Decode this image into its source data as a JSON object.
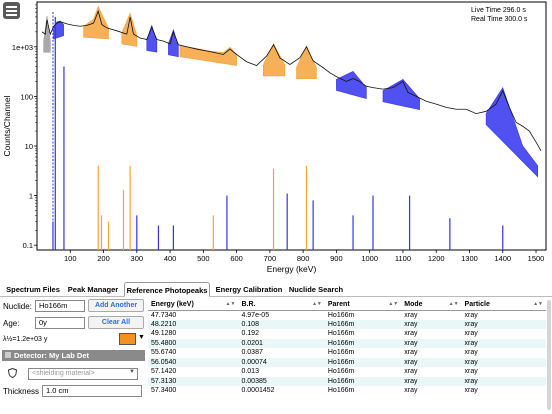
{
  "live_time": "Live Time 296.0 s",
  "real_time": "Real Time 300.0 s",
  "chart_data": {
    "type": "line",
    "title": "",
    "xlabel": "Energy (keV)",
    "ylabel": "Counts/Channel",
    "y_scale": "log",
    "xlim": [
      0,
      1530
    ],
    "ylim": [
      0.08,
      8000
    ],
    "x_ticks": [
      100,
      200,
      300,
      400,
      500,
      600,
      700,
      800,
      900,
      1000,
      1100,
      1200,
      1300,
      1400,
      1500
    ],
    "y_ticks": [
      {
        "v": 1000,
        "label": "1e+03"
      },
      {
        "v": 100,
        "label": "100"
      },
      {
        "v": 10,
        "label": "10"
      },
      {
        "v": 1,
        "label": "1"
      },
      {
        "v": 0.1,
        "label": "0.1"
      }
    ],
    "spectrum": [
      [
        15,
        2000
      ],
      [
        25,
        1800
      ],
      [
        30,
        3500
      ],
      [
        35,
        2500
      ],
      [
        40,
        1800
      ],
      [
        50,
        2600
      ],
      [
        60,
        3000
      ],
      [
        70,
        3200
      ],
      [
        90,
        2900
      ],
      [
        110,
        2700
      ],
      [
        130,
        2600
      ],
      [
        150,
        2700
      ],
      [
        170,
        3000
      ],
      [
        184,
        5200
      ],
      [
        195,
        2800
      ],
      [
        210,
        2400
      ],
      [
        240,
        2100
      ],
      [
        270,
        1800
      ],
      [
        280,
        4000
      ],
      [
        290,
        1800
      ],
      [
        310,
        1500
      ],
      [
        330,
        1400
      ],
      [
        345,
        2500
      ],
      [
        360,
        1400
      ],
      [
        380,
        1300
      ],
      [
        400,
        1150
      ],
      [
        410,
        2000
      ],
      [
        425,
        1100
      ],
      [
        450,
        1000
      ],
      [
        480,
        900
      ],
      [
        520,
        800
      ],
      [
        560,
        700
      ],
      [
        580,
        900
      ],
      [
        600,
        700
      ],
      [
        630,
        500
      ],
      [
        660,
        420
      ],
      [
        690,
        650
      ],
      [
        711,
        1100
      ],
      [
        730,
        600
      ],
      [
        760,
        440
      ],
      [
        790,
        600
      ],
      [
        810,
        1000
      ],
      [
        830,
        520
      ],
      [
        860,
        380
      ],
      [
        880,
        300
      ],
      [
        900,
        250
      ],
      [
        930,
        200
      ],
      [
        950,
        230
      ],
      [
        970,
        200
      ],
      [
        990,
        160
      ],
      [
        1010,
        150
      ],
      [
        1040,
        140
      ],
      [
        1070,
        150
      ],
      [
        1100,
        200
      ],
      [
        1115,
        120
      ],
      [
        1140,
        100
      ],
      [
        1170,
        80
      ],
      [
        1200,
        70
      ],
      [
        1230,
        60
      ],
      [
        1260,
        55
      ],
      [
        1290,
        55
      ],
      [
        1320,
        45
      ],
      [
        1350,
        50
      ],
      [
        1380,
        70
      ],
      [
        1400,
        130
      ],
      [
        1420,
        60
      ],
      [
        1440,
        30
      ],
      [
        1460,
        25
      ],
      [
        1480,
        20
      ],
      [
        1500,
        12
      ],
      [
        1515,
        8
      ]
    ],
    "fitted_peaks": [
      {
        "color": "#9a9a9a",
        "pts": [
          [
            20,
            1300
          ],
          [
            30,
            4200
          ],
          [
            40,
            1300
          ]
        ]
      },
      {
        "color": "#3333ee",
        "pts": [
          [
            50,
            2400
          ],
          [
            60,
            3200
          ],
          [
            70,
            3300
          ],
          [
            80,
            2800
          ]
        ]
      },
      {
        "color": "#f5a23a",
        "pts": [
          [
            140,
            2600
          ],
          [
            170,
            3600
          ],
          [
            184,
            6500
          ],
          [
            195,
            4500
          ],
          [
            215,
            2400
          ]
        ]
      },
      {
        "color": "#f5a23a",
        "pts": [
          [
            255,
            1900
          ],
          [
            280,
            4800
          ],
          [
            300,
            1700
          ]
        ]
      },
      {
        "color": "#3333ee",
        "pts": [
          [
            330,
            1400
          ],
          [
            345,
            2700
          ],
          [
            360,
            1300
          ]
        ]
      },
      {
        "color": "#3333ee",
        "pts": [
          [
            395,
            1150
          ],
          [
            410,
            2200
          ],
          [
            425,
            1050
          ]
        ]
      },
      {
        "color": "#f5a23a",
        "pts": [
          [
            430,
            1050
          ],
          [
            470,
            950
          ],
          [
            520,
            820
          ],
          [
            560,
            760
          ],
          [
            580,
            980
          ],
          [
            600,
            700
          ]
        ]
      },
      {
        "color": "#f5a23a",
        "pts": [
          [
            680,
            430
          ],
          [
            711,
            1150
          ],
          [
            745,
            430
          ]
        ]
      },
      {
        "color": "#f5a23a",
        "pts": [
          [
            780,
            380
          ],
          [
            810,
            1050
          ],
          [
            840,
            380
          ]
        ]
      },
      {
        "color": "#3333ee",
        "pts": [
          [
            900,
            220
          ],
          [
            950,
            320
          ],
          [
            990,
            150
          ]
        ]
      },
      {
        "color": "#3333ee",
        "pts": [
          [
            1040,
            130
          ],
          [
            1100,
            220
          ],
          [
            1150,
            90
          ]
        ]
      },
      {
        "color": "#3333ee",
        "pts": [
          [
            1350,
            45
          ],
          [
            1400,
            150
          ],
          [
            1460,
            10
          ],
          [
            1505,
            4
          ]
        ]
      }
    ],
    "reference_lines": [
      {
        "x": 48,
        "y": 0.3,
        "color": "#3333ee"
      },
      {
        "x": 55,
        "y": 4000,
        "color": "#3333ee"
      },
      {
        "x": 81,
        "y": 400,
        "color": "#3333ee"
      },
      {
        "x": 184,
        "y": 4.0,
        "color": "#f5a23a"
      },
      {
        "x": 194,
        "y": 0.4,
        "color": "#f5a23a"
      },
      {
        "x": 215,
        "y": 0.3,
        "color": "#f5a23a"
      },
      {
        "x": 260,
        "y": 1.3,
        "color": "#f5a23a"
      },
      {
        "x": 280,
        "y": 4.0,
        "color": "#f5a23a"
      },
      {
        "x": 300,
        "y": 0.4,
        "color": "#3333ee"
      },
      {
        "x": 365,
        "y": 0.25,
        "color": "#3333ee"
      },
      {
        "x": 410,
        "y": 0.25,
        "color": "#3333ee"
      },
      {
        "x": 530,
        "y": 0.4,
        "color": "#f5a23a"
      },
      {
        "x": 571,
        "y": 1.0,
        "color": "#3333ee"
      },
      {
        "x": 711,
        "y": 3.5,
        "color": "#f5a23a"
      },
      {
        "x": 752,
        "y": 1.1,
        "color": "#3333ee"
      },
      {
        "x": 810,
        "y": 4.0,
        "color": "#f5a23a"
      },
      {
        "x": 830,
        "y": 0.8,
        "color": "#3333ee"
      },
      {
        "x": 950,
        "y": 0.4,
        "color": "#3333ee"
      },
      {
        "x": 1010,
        "y": 1.0,
        "color": "#3333ee"
      },
      {
        "x": 1120,
        "y": 1.0,
        "color": "#3333ee"
      },
      {
        "x": 1241,
        "y": 0.35,
        "color": "#3333ee"
      },
      {
        "x": 1400,
        "y": 0.25,
        "color": "#3333ee"
      }
    ]
  },
  "tabs": [
    "Spectrum Files",
    "Peak Manager",
    "Reference Photopeaks",
    "Energy Calibration",
    "Nuclide Search"
  ],
  "nuclide_label": "Nuclide:",
  "nuclide_value": "Ho166m",
  "add_another": "Add Another",
  "age_label": "Age:",
  "age_value": "0y",
  "clear_all": "Clear All",
  "half_life": "λ½=1.2e+03 y",
  "nuclide_color": "#f5921e",
  "detector_label": "Detector: My Lab Det",
  "shielding_placeholder": "<shielding material>",
  "thickness_label": "Thickness",
  "thickness_value": "1.0 cm",
  "table": {
    "headers": [
      "Energy (keV)",
      "B.R.",
      "Parent",
      "Mode",
      "Particle"
    ],
    "rows": [
      [
        "47.7340",
        "4.97e-05",
        "Ho166m",
        "xray",
        "xray"
      ],
      [
        "48.2210",
        "0.108",
        "Ho166m",
        "xray",
        "xray"
      ],
      [
        "49.1280",
        "0.192",
        "Ho166m",
        "xray",
        "xray"
      ],
      [
        "55.4800",
        "0.0201",
        "Ho166m",
        "xray",
        "xray"
      ],
      [
        "55.6740",
        "0.0387",
        "Ho166m",
        "xray",
        "xray"
      ],
      [
        "56.0540",
        "0.00074",
        "Ho166m",
        "xray",
        "xray"
      ],
      [
        "57.1420",
        "0.013",
        "Ho166m",
        "xray",
        "xray"
      ],
      [
        "57.3130",
        "0.00385",
        "Ho166m",
        "xray",
        "xray"
      ],
      [
        "57.3400",
        "0.0001452",
        "Ho166m",
        "xray",
        "xray"
      ]
    ]
  }
}
